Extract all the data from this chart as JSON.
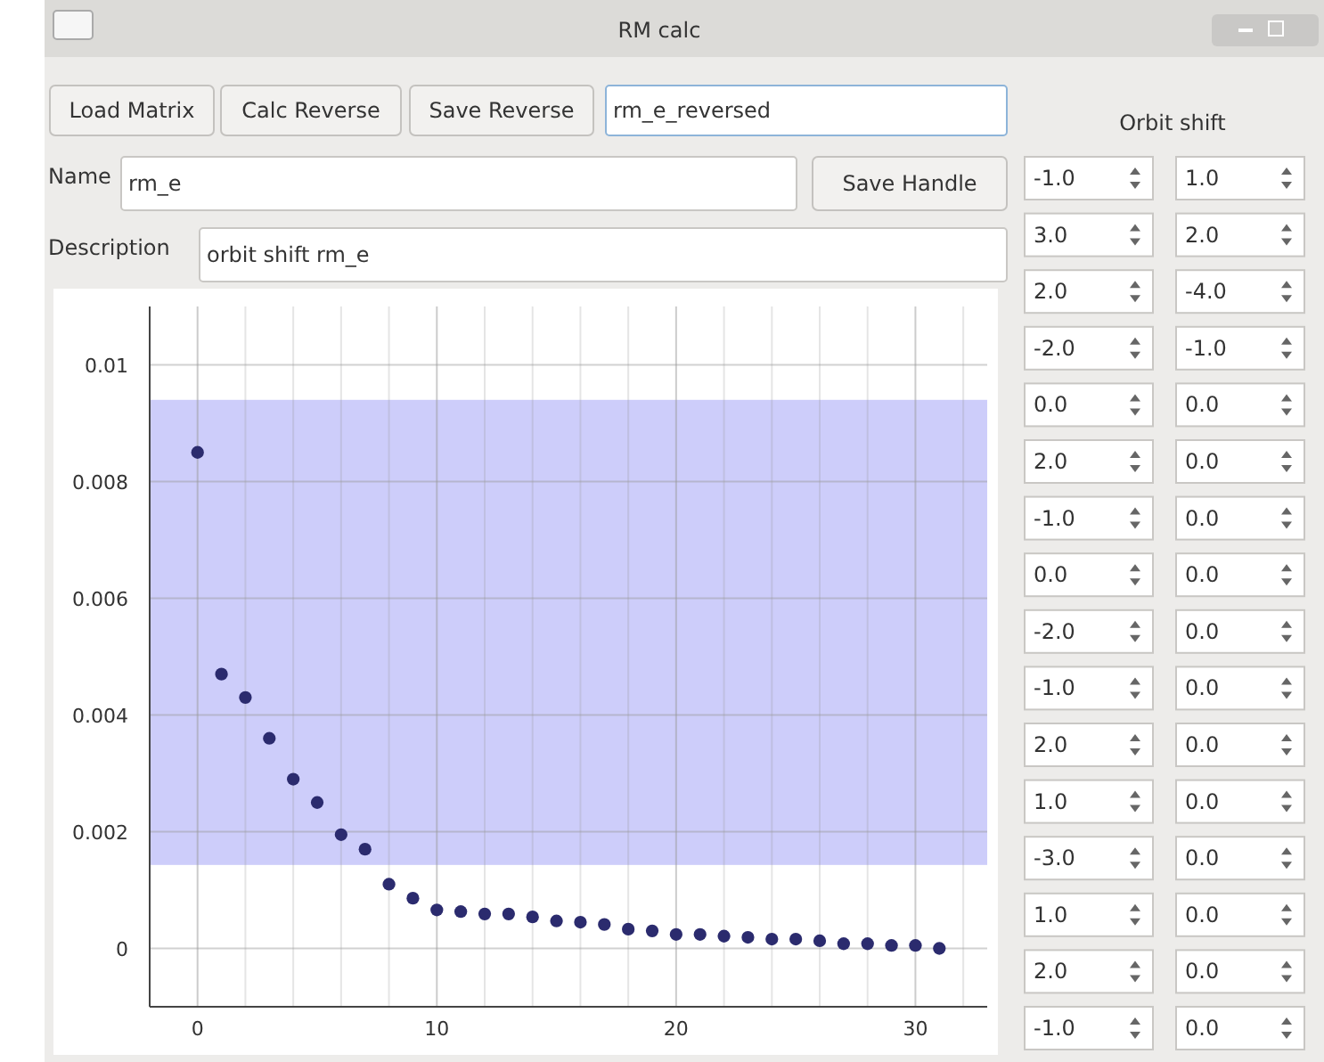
{
  "chart_data": [
    {
      "type": "other",
      "title": "RM calc",
      "annotations": [
        "Load Matrix",
        "Calc Reverse",
        "Save Reverse",
        "rm_e_reversed",
        "Name",
        "rm_e",
        "Save Handle",
        "Description",
        "orbit shift rm_e"
      ]
    },
    {
      "type": "scatter",
      "x": [
        0,
        1,
        2,
        3,
        4,
        5,
        6,
        7,
        8,
        9,
        10,
        11,
        12,
        13,
        14,
        15,
        16,
        17,
        18,
        19,
        20,
        21,
        22,
        23,
        24,
        25,
        26,
        27,
        28,
        29,
        30,
        31
      ],
      "values": [
        0.0085,
        0.0047,
        0.0043,
        0.0036,
        0.0029,
        0.0025,
        0.00195,
        0.0017,
        0.0011,
        0.00086,
        0.00066,
        0.00063,
        0.00059,
        0.00059,
        0.00054,
        0.00047,
        0.00045,
        0.00041,
        0.00033,
        0.0003,
        0.00024,
        0.00024,
        0.00021,
        0.00019,
        0.00016,
        0.00016,
        0.00013,
        8e-05,
        8e-05,
        5e-05,
        5e-05,
        0.0
      ],
      "color": "#2b2b6e",
      "marker": "circle",
      "grid": true,
      "xlim": [
        -2,
        33
      ],
      "xticks": [
        0,
        {
          "value": 2,
          "label": null
        },
        {
          "value": 4,
          "label": null
        },
        {
          "value": 6,
          "label": null
        },
        {
          "value": 8,
          "label": null
        },
        10,
        {
          "value": 12,
          "label": null
        },
        {
          "value": 14,
          "label": null
        },
        {
          "value": 16,
          "label": null
        },
        {
          "value": 18,
          "label": null
        },
        20,
        {
          "value": 22,
          "label": null
        },
        {
          "value": 24,
          "label": null
        },
        {
          "value": 26,
          "label": null
        },
        {
          "value": 28,
          "label": null
        },
        30,
        {
          "value": 32,
          "label": null
        }
      ],
      "ylim": [
        -0.001,
        0.011
      ],
      "yticks": [
        0,
        0.002,
        0.004,
        0.006,
        0.008,
        0.01
      ],
      "bands": [
        {
          "axis": "y",
          "from": 0.00143,
          "to": 0.0094,
          "color": "#c8c8fa"
        }
      ]
    },
    {
      "type": "other",
      "title": "Orbit shift",
      "annotations": [
        "-1.0",
        "1.0",
        "3.0",
        "2.0",
        "2.0",
        "-4.0",
        "-2.0",
        "-1.0",
        "0.0",
        "0.0",
        "2.0",
        "0.0",
        "-1.0",
        "0.0",
        "0.0",
        "0.0",
        "-2.0",
        "0.0",
        "-1.0",
        "0.0",
        "2.0",
        "0.0",
        "1.0",
        "0.0",
        "-3.0",
        "0.0",
        "1.0",
        "0.0",
        "2.0",
        "0.0",
        "-1.0",
        "0.0"
      ]
    }
  ]
}
